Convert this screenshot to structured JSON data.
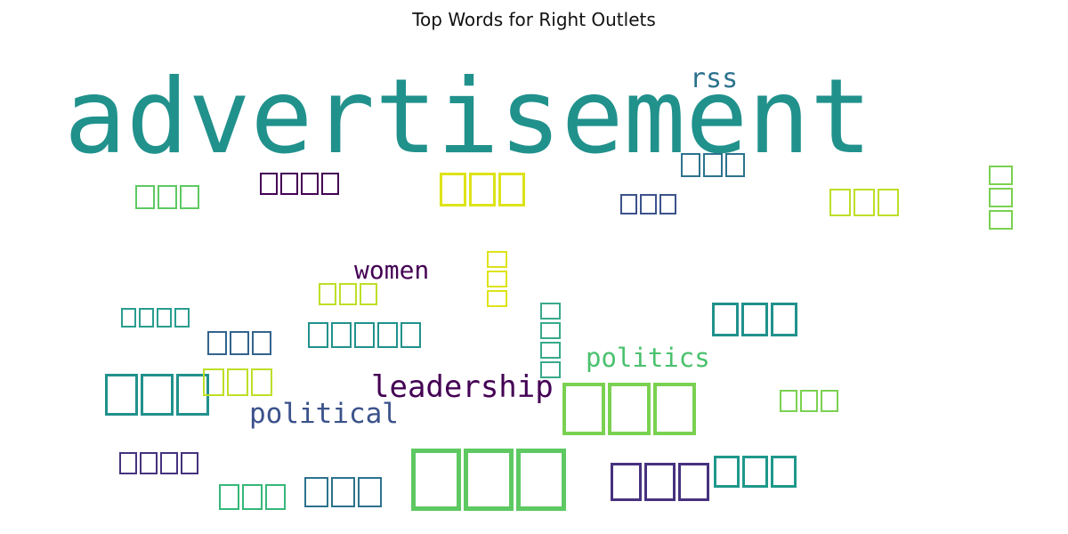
{
  "title": "Top Words for Right Outlets",
  "words": [
    {
      "text": "advertisement",
      "color": "#21918c"
    },
    {
      "text": "rss",
      "color": "#2c728e"
    },
    {
      "text": "women",
      "color": "#440154"
    },
    {
      "text": "politics",
      "color": "#4ac16d"
    },
    {
      "text": "leadership",
      "color": "#440154"
    },
    {
      "text": "political",
      "color": "#3b528b"
    }
  ],
  "glyph_words": [
    {
      "glyphs": 3,
      "color": "#2c728e"
    },
    {
      "glyphs": 3,
      "color": "#5ec962"
    },
    {
      "glyphs": 4,
      "color": "#440154"
    },
    {
      "glyphs": 3,
      "color": "#dde318"
    },
    {
      "glyphs": 3,
      "color": "#bddf26"
    },
    {
      "glyphs": 3,
      "color": "#7ad151"
    },
    {
      "glyphs": 3,
      "color": "#3b528b"
    },
    {
      "glyphs": 3,
      "color": "#dde318"
    },
    {
      "glyphs": 3,
      "color": "#bddf26"
    },
    {
      "glyphs": 3,
      "color": "#21918c"
    },
    {
      "glyphs": 4,
      "color": "#2a9d8f"
    },
    {
      "glyphs": 5,
      "color": "#21918c"
    },
    {
      "glyphs": 3,
      "color": "#33638d"
    },
    {
      "glyphs": 4,
      "color": "#38a98c"
    },
    {
      "glyphs": 3,
      "color": "#21918c"
    },
    {
      "glyphs": 3,
      "color": "#bddf26"
    },
    {
      "glyphs": 3,
      "color": "#7ad151"
    },
    {
      "glyphs": 3,
      "color": "#7ad151"
    },
    {
      "glyphs": 4,
      "color": "#46327e"
    },
    {
      "glyphs": 3,
      "color": "#5ec962"
    },
    {
      "glyphs": 3,
      "color": "#46327e"
    },
    {
      "glyphs": 3,
      "color": "#1f988b"
    },
    {
      "glyphs": 3,
      "color": "#2c728e"
    },
    {
      "glyphs": 3,
      "color": "#35b779"
    }
  ]
}
